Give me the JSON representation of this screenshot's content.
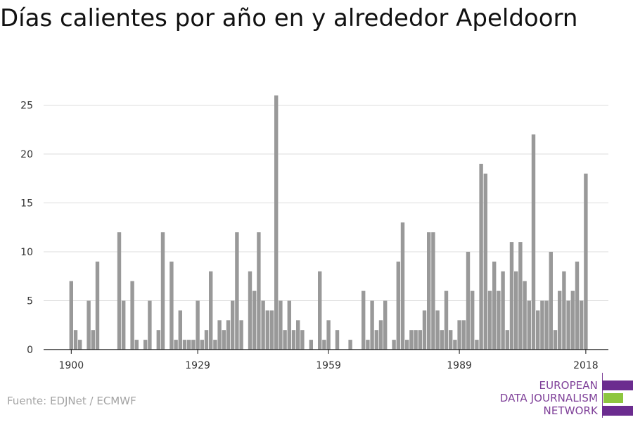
{
  "source": "Fuente: EDJNet / ECMWF",
  "logo": {
    "lines": [
      "EUROPEAN",
      "DATA JOURNALISM",
      "NETWORK"
    ],
    "colors": {
      "text": "#7e3f98",
      "bar_top": "#6b2c8f",
      "bar_mid": "#8dc63f",
      "bar_bottom": "#6b2c8f"
    }
  },
  "colors": {
    "bar": "#999999",
    "grid": "#dddddd",
    "axis": "#111111",
    "label": "#333333"
  },
  "chart_data": {
    "type": "bar",
    "title": "Días calientes por año en y alrededor Apeldoorn",
    "xlabel": "",
    "ylabel": "",
    "ylim": [
      0,
      27
    ],
    "xlim": [
      1900,
      2018
    ],
    "yticks": [
      0,
      5,
      10,
      15,
      20,
      25
    ],
    "xticks": [
      1900,
      1929,
      1959,
      1989,
      2018
    ],
    "grid": true,
    "legend": "none",
    "x": [
      1900,
      1901,
      1902,
      1903,
      1904,
      1905,
      1906,
      1907,
      1908,
      1909,
      1910,
      1911,
      1912,
      1913,
      1914,
      1915,
      1916,
      1917,
      1918,
      1919,
      1920,
      1921,
      1922,
      1923,
      1924,
      1925,
      1926,
      1927,
      1928,
      1929,
      1930,
      1931,
      1932,
      1933,
      1934,
      1935,
      1936,
      1937,
      1938,
      1939,
      1940,
      1941,
      1942,
      1943,
      1944,
      1945,
      1946,
      1947,
      1948,
      1949,
      1950,
      1951,
      1952,
      1953,
      1954,
      1955,
      1956,
      1957,
      1958,
      1959,
      1960,
      1961,
      1962,
      1963,
      1964,
      1965,
      1966,
      1967,
      1968,
      1969,
      1970,
      1971,
      1972,
      1973,
      1974,
      1975,
      1976,
      1977,
      1978,
      1979,
      1980,
      1981,
      1982,
      1983,
      1984,
      1985,
      1986,
      1987,
      1988,
      1989,
      1990,
      1991,
      1992,
      1993,
      1994,
      1995,
      1996,
      1997,
      1998,
      1999,
      2000,
      2001,
      2002,
      2003,
      2004,
      2005,
      2006,
      2007,
      2008,
      2009,
      2010,
      2011,
      2012,
      2013,
      2014,
      2015,
      2016,
      2017,
      2018
    ],
    "values": [
      7,
      2,
      1,
      0,
      5,
      2,
      9,
      0,
      0,
      0,
      0,
      12,
      5,
      0,
      7,
      1,
      0,
      1,
      5,
      0,
      2,
      12,
      0,
      9,
      1,
      4,
      1,
      1,
      1,
      5,
      1,
      2,
      8,
      1,
      3,
      2,
      3,
      5,
      12,
      3,
      0,
      8,
      6,
      12,
      5,
      4,
      4,
      26,
      5,
      2,
      5,
      2,
      3,
      2,
      0,
      1,
      0,
      8,
      1,
      3,
      0,
      2,
      0,
      0,
      1,
      0,
      0,
      6,
      1,
      5,
      2,
      3,
      5,
      0,
      1,
      9,
      13,
      1,
      2,
      2,
      2,
      4,
      12,
      12,
      4,
      2,
      6,
      2,
      1,
      3,
      3,
      10,
      6,
      1,
      19,
      18,
      6,
      9,
      6,
      8,
      2,
      11,
      8,
      11,
      7,
      5,
      22,
      4,
      5,
      5,
      10,
      2,
      6,
      8,
      5,
      6,
      9,
      5,
      18
    ]
  }
}
